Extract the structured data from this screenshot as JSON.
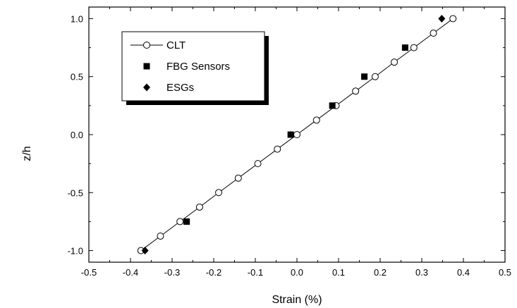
{
  "chart_data": {
    "type": "scatter",
    "xlabel": "Strain (%)",
    "ylabel": "z/h",
    "xlim": [
      -0.5,
      0.5
    ],
    "ylim": [
      -1.1,
      1.1
    ],
    "x_ticks": [
      -0.5,
      -0.4,
      -0.3,
      -0.2,
      -0.1,
      0.0,
      0.1,
      0.2,
      0.3,
      0.4,
      0.5
    ],
    "x_tick_labels": [
      "-0.5",
      "-0.4",
      "-0.3",
      "-0.2",
      "-0.1",
      "0.0",
      "0.1",
      "0.2",
      "0.3",
      "0.4",
      "0.5"
    ],
    "y_ticks": [
      -1.0,
      -0.5,
      0.0,
      0.5,
      1.0
    ],
    "y_tick_labels": [
      "-1.0",
      "-0.5",
      "0.0",
      "0.5",
      "1.0"
    ],
    "grid": false,
    "legend_position": "top-left",
    "series": [
      {
        "name": "CLT",
        "marker": "open-circle",
        "line": true,
        "x": [
          -0.375,
          -0.328,
          -0.281,
          -0.234,
          -0.188,
          -0.141,
          -0.094,
          -0.047,
          0.0,
          0.047,
          0.094,
          0.141,
          0.188,
          0.234,
          0.281,
          0.328,
          0.375
        ],
        "y": [
          -1.0,
          -0.875,
          -0.75,
          -0.625,
          -0.5,
          -0.375,
          -0.25,
          -0.125,
          0.0,
          0.125,
          0.25,
          0.375,
          0.5,
          0.625,
          0.75,
          0.875,
          1.0
        ]
      },
      {
        "name": "FBG Sensors",
        "marker": "filled-square",
        "line": false,
        "x": [
          -0.265,
          -0.015,
          0.085,
          0.162,
          0.26
        ],
        "y": [
          -0.75,
          0.0,
          0.25,
          0.5,
          0.75
        ]
      },
      {
        "name": "ESGs",
        "marker": "filled-diamond",
        "line": false,
        "x": [
          -0.365,
          0.348
        ],
        "y": [
          -1.0,
          1.0
        ]
      }
    ]
  }
}
